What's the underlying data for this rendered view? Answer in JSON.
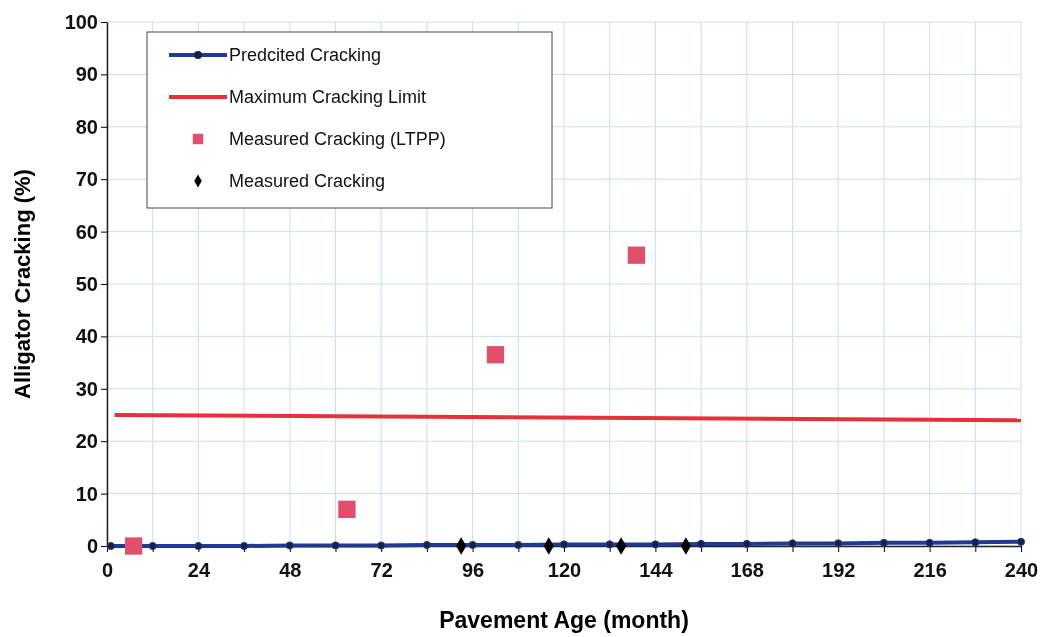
{
  "chart_data": {
    "type": "line",
    "xlabel": "Pavement Age (month)",
    "ylabel": "Alligator Cracking (%)",
    "xlim": [
      0,
      240
    ],
    "ylim": [
      0,
      100
    ],
    "xticks": [
      0,
      {
        "value": 12,
        "label": null
      },
      24,
      {
        "value": 36,
        "label": null
      },
      48,
      {
        "value": 60,
        "label": null
      },
      72,
      {
        "value": 84,
        "label": null
      },
      96,
      {
        "value": 108,
        "label": null
      },
      120,
      {
        "value": 132,
        "label": null
      },
      144,
      {
        "value": 156,
        "label": null
      },
      168,
      {
        "value": 180,
        "label": null
      },
      192,
      {
        "value": 204,
        "label": null
      },
      216,
      {
        "value": 228,
        "label": null
      },
      240
    ],
    "yticks": [
      0,
      10,
      20,
      30,
      40,
      50,
      60,
      70,
      80,
      90,
      100
    ],
    "grid": true,
    "legend": "top left",
    "series": [
      {
        "name": "Predcited Cracking",
        "marker": "circle",
        "color": "#1f3a93",
        "x": [
          1,
          12,
          24,
          36,
          48,
          60,
          72,
          84,
          96,
          108,
          120,
          132,
          144,
          156,
          168,
          180,
          192,
          204,
          216,
          228,
          240
        ],
        "values": [
          0,
          0,
          0,
          0,
          0.1,
          0.1,
          0.1,
          0.2,
          0.2,
          0.2,
          0.3,
          0.3,
          0.3,
          0.4,
          0.4,
          0.5,
          0.5,
          0.6,
          0.6,
          0.7,
          0.8
        ]
      },
      {
        "name": "Maximum Cracking Limit",
        "marker": "none",
        "color": "#e8303a",
        "x": [
          2,
          240
        ],
        "values": [
          25,
          24
        ]
      },
      {
        "name": "Measured Cracking (LTPP)",
        "type": "scatter",
        "marker": "square",
        "color": "#e0506a",
        "x": [
          7,
          63,
          102,
          139
        ],
        "values": [
          0,
          7,
          36.5,
          55.5
        ]
      },
      {
        "name": "Measured Cracking",
        "type": "scatter",
        "marker": "diamond",
        "color": "#000000",
        "x": [
          93,
          116,
          135,
          152
        ],
        "values": [
          0,
          0,
          0,
          0
        ]
      }
    ]
  }
}
